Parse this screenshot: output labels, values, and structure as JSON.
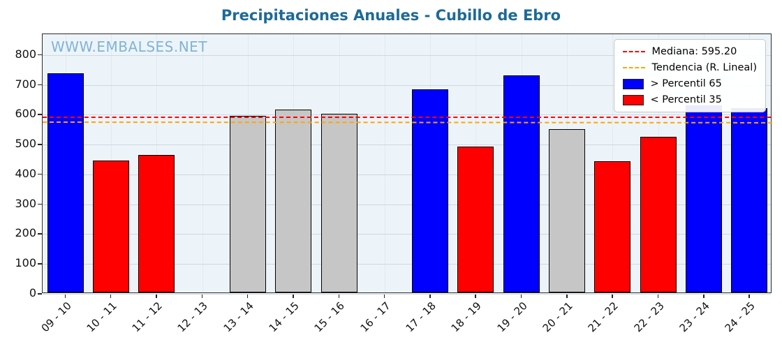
{
  "watermark": "WWW.EMBALSES.NET",
  "chart_data": {
    "type": "bar",
    "title": "Precipitaciones Anuales - Cubillo de Ebro",
    "xlabel": "",
    "ylabel": "",
    "categories": [
      "09 - 10",
      "10 - 11",
      "11 - 12",
      "12 - 13",
      "13 - 14",
      "14 - 15",
      "15 - 16",
      "16 - 17",
      "17 - 18",
      "18 - 19",
      "19 - 20",
      "20 - 21",
      "21 - 22",
      "22 - 23",
      "23 - 24",
      "24 - 25"
    ],
    "values": [
      735,
      443,
      460,
      null,
      592,
      612,
      598,
      null,
      680,
      488,
      727,
      548,
      440,
      522,
      627,
      617
    ],
    "bar_classes": [
      "above65",
      "below35",
      "below35",
      "none",
      "mid",
      "mid",
      "mid",
      "none",
      "above65",
      "below35",
      "above65",
      "mid",
      "below35",
      "below35",
      "above65",
      "above65"
    ],
    "colors": {
      "above65": "#0000ff",
      "below35": "#ff0000",
      "mid": "#c6c6c6"
    },
    "median": 595.2,
    "median_color": "#ff0000",
    "trend": {
      "start": 578,
      "end": 576
    },
    "trend_color": "#ffa500",
    "ylim": [
      0,
      870
    ],
    "yticks": [
      0,
      100,
      200,
      300,
      400,
      500,
      600,
      700,
      800
    ],
    "grid": true,
    "legend_position": "upper right",
    "legend": [
      {
        "label": "Mediana: 595.20",
        "type": "dashed-line",
        "color": "#ff0000"
      },
      {
        "label": "Tendencia (R. Lineal)",
        "type": "dashed-line",
        "color": "#ffa500"
      },
      {
        "label": "> Percentil 65",
        "type": "patch",
        "color": "#0000ff"
      },
      {
        "label": "< Percentil 35",
        "type": "patch",
        "color": "#ff0000"
      }
    ]
  }
}
